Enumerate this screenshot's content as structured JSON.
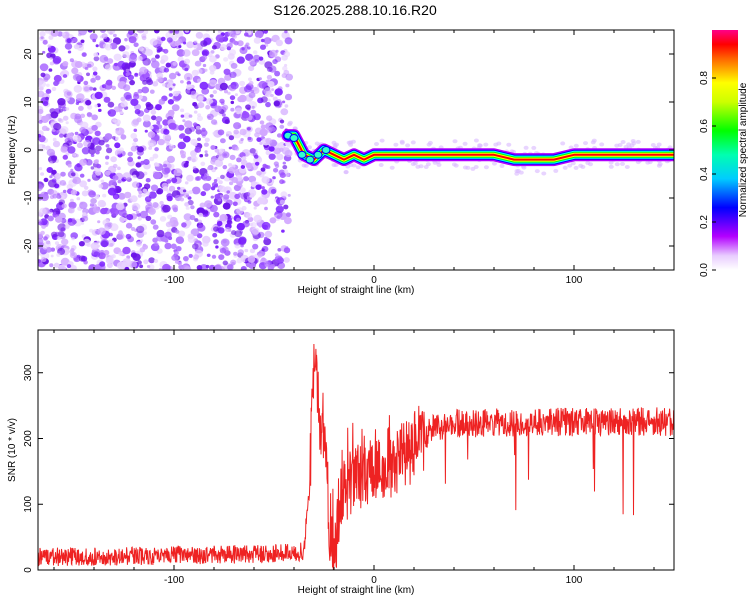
{
  "title": "S126.2025.288.10.16.R20",
  "colors": {
    "dots": [
      "#e8d2ff",
      "#d2a8ff",
      "#b57bff",
      "#9b4dff",
      "#7b1fff",
      "#6a12e8"
    ],
    "signal_ramp": [
      "#b300ff",
      "#0000ff",
      "#00ffff",
      "#00ff00",
      "#ffff00",
      "#ff0000"
    ],
    "snr_line": "#ee2222"
  },
  "chart_data": [
    {
      "type": "heatmap",
      "xlabel": "Height of straight line (km)",
      "ylabel": "Frequency (Hz)",
      "xlim": [
        -168,
        150
      ],
      "ylim": [
        -25,
        25
      ],
      "xticks": [
        -100,
        0,
        100
      ],
      "xtick_labels": [
        "-100",
        "0",
        "100"
      ],
      "yticks": [
        20,
        10,
        0,
        -10,
        -20
      ],
      "ytick_labels": [
        "20",
        "10",
        "0",
        "-10",
        "-20"
      ],
      "noise_region_km": [
        -168,
        -45
      ],
      "ridge": {
        "x": [
          -43,
          -40,
          -35,
          -30,
          -25,
          -20,
          -15,
          -10,
          -5,
          0,
          10,
          20,
          40,
          60,
          70,
          80,
          90,
          100,
          120,
          150
        ],
        "y": [
          3,
          3,
          -1,
          -2,
          0,
          -1,
          -2,
          -1,
          -2,
          -1,
          -1,
          -1,
          -1,
          -1,
          -2,
          -2,
          -2,
          -1,
          -1,
          -1
        ]
      },
      "colorbar": {
        "label": "Normalized spectral amplitude",
        "range": [
          0.0,
          1.0
        ],
        "ticks": [
          "0.0",
          "0.2",
          "0.4",
          "0.6",
          "0.8"
        ]
      }
    },
    {
      "type": "line",
      "xlabel": "Height of straight line (km)",
      "ylabel": "SNR (10 * v/v)",
      "xlim": [
        -168,
        150
      ],
      "ylim": [
        0,
        365
      ],
      "xticks": [
        -100,
        0,
        100
      ],
      "xtick_labels": [
        "-100",
        "0",
        "100"
      ],
      "yticks": [
        0,
        100,
        200,
        300
      ],
      "ytick_labels": [
        "0",
        "100",
        "200",
        "300"
      ],
      "series": [
        {
          "name": "SNR",
          "x": [
            -168,
            -150,
            -100,
            -50,
            -35,
            -32,
            -30,
            -28,
            -25,
            -22,
            -20,
            -17,
            -15,
            -10,
            -5,
            0,
            5,
            10,
            15,
            20,
            25,
            30,
            40,
            60,
            80,
            100,
            120,
            140,
            150
          ],
          "y": [
            20,
            20,
            22,
            25,
            28,
            150,
            330,
            250,
            210,
            60,
            20,
            110,
            120,
            140,
            150,
            155,
            160,
            165,
            175,
            190,
            205,
            215,
            222,
            224,
            225,
            225,
            226,
            226,
            225
          ]
        }
      ]
    }
  ]
}
